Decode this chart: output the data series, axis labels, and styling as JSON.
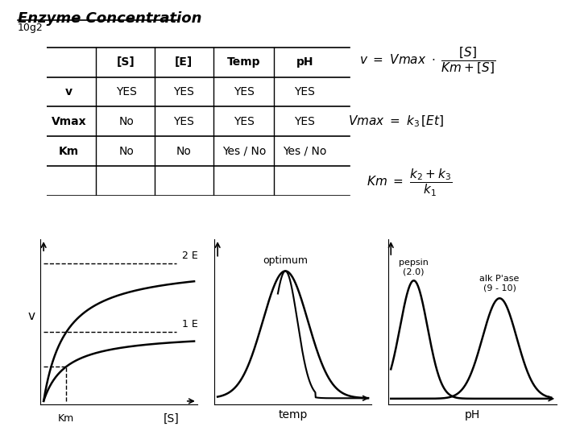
{
  "title": "Enzyme Concentration",
  "subtitle": "10g2",
  "table_headers": [
    "",
    "[S]",
    "[E]",
    "Temp",
    "pH"
  ],
  "table_rows": [
    [
      "v",
      "YES",
      "YES",
      "YES",
      "YES"
    ],
    [
      "Vmax",
      "No",
      "YES",
      "YES",
      "YES"
    ],
    [
      "Km",
      "No",
      "No",
      "Yes / No",
      "Yes / No"
    ]
  ],
  "graph1_xlabel": "[S]",
  "graph1_ylabel": "v",
  "graph1_label1": "2 E",
  "graph1_label2": "1 E",
  "graph1_km_label": "Km",
  "graph2_xlabel": "temp",
  "graph2_label": "optimum",
  "graph3_xlabel": "pH",
  "graph3_label1": "pepsin\n(2.0)",
  "graph3_label2": "alk P'ase\n(9 - 10)",
  "bg_color": "#ffffff",
  "text_color": "#000000"
}
